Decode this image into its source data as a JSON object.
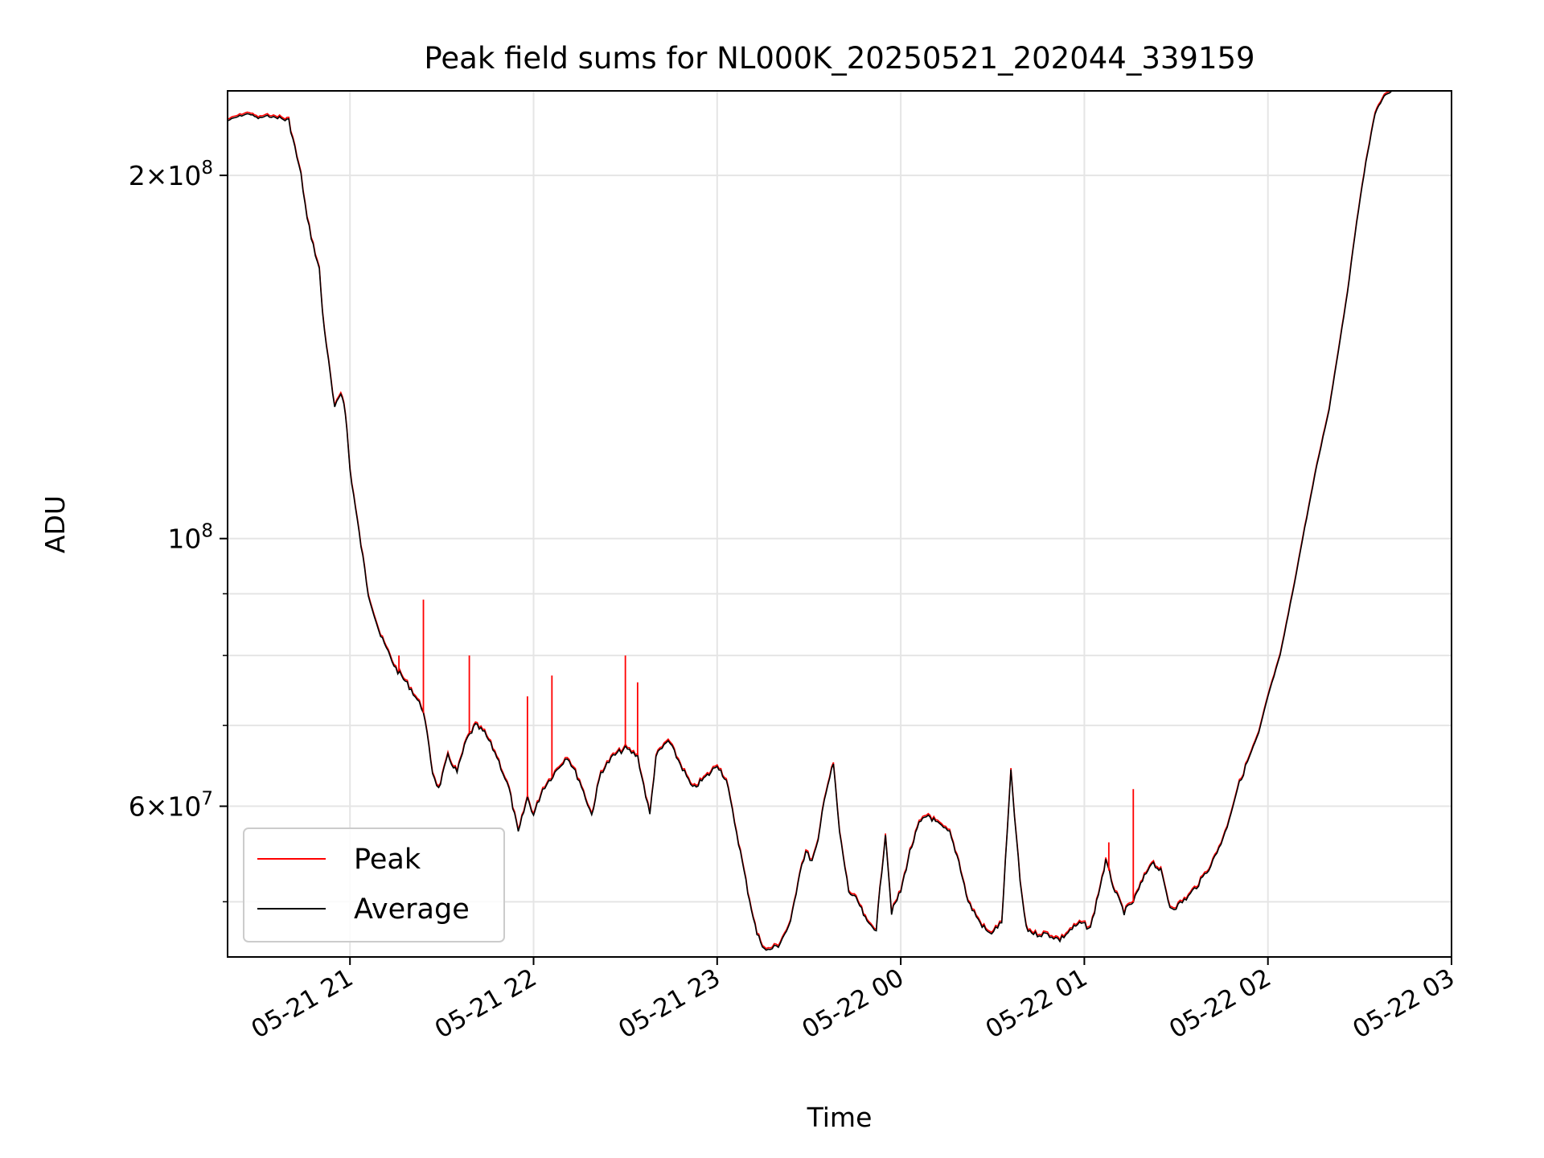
{
  "chart_data": {
    "type": "line",
    "title": "Peak field sums for NL000K_20250521_202044_339159",
    "xlabel": "Time",
    "ylabel": "ADU",
    "yscale": "log",
    "grid": true,
    "legend_position": "lower-left",
    "xlim": [
      "2025-05-21 20:20",
      "2025-05-22 03:00"
    ],
    "ylim": [
      45000000,
      235000000
    ],
    "x_ticks": [
      {
        "t": "2025-05-21 21:00",
        "label": "05-21 21"
      },
      {
        "t": "2025-05-21 22:00",
        "label": "05-21 22"
      },
      {
        "t": "2025-05-21 23:00",
        "label": "05-21 23"
      },
      {
        "t": "2025-05-22 00:00",
        "label": "05-22 00"
      },
      {
        "t": "2025-05-22 01:00",
        "label": "05-22 01"
      },
      {
        "t": "2025-05-22 02:00",
        "label": "05-22 02"
      },
      {
        "t": "2025-05-22 03:00",
        "label": "05-22 03"
      }
    ],
    "y_major_ticks": [
      {
        "v": 60000000,
        "mant": "6",
        "exp": "7"
      },
      {
        "v": 100000000,
        "mant": "",
        "exp": "8"
      },
      {
        "v": 200000000,
        "mant": "2",
        "exp": "8"
      }
    ],
    "y_minor_ticks": [
      50000000,
      70000000,
      80000000,
      90000000
    ],
    "series": [
      {
        "name": "Average",
        "color": "#000000",
        "x": [
          "2025-05-21 20:20",
          "2025-05-21 20:24",
          "2025-05-21 20:27",
          "2025-05-21 20:30",
          "2025-05-21 20:33",
          "2025-05-21 20:37",
          "2025-05-21 20:40",
          "2025-05-21 20:44",
          "2025-05-21 20:46",
          "2025-05-21 20:48",
          "2025-05-21 20:50",
          "2025-05-21 20:51",
          "2025-05-21 20:53",
          "2025-05-21 20:55",
          "2025-05-21 20:57",
          "2025-05-21 20:58",
          "2025-05-21 20:59",
          "2025-05-21 21:00",
          "2025-05-21 21:03",
          "2025-05-21 21:06",
          "2025-05-21 21:10",
          "2025-05-21 21:15",
          "2025-05-21 21:20",
          "2025-05-21 21:24",
          "2025-05-21 21:27",
          "2025-05-21 21:29",
          "2025-05-21 21:32",
          "2025-05-21 21:35",
          "2025-05-21 21:38",
          "2025-05-21 21:41",
          "2025-05-21 21:44",
          "2025-05-21 21:48",
          "2025-05-21 21:52",
          "2025-05-21 21:55",
          "2025-05-21 21:58",
          "2025-05-21 22:00",
          "2025-05-21 22:03",
          "2025-05-21 22:07",
          "2025-05-21 22:11",
          "2025-05-21 22:15",
          "2025-05-21 22:19",
          "2025-05-21 22:22",
          "2025-05-21 22:26",
          "2025-05-21 22:30",
          "2025-05-21 22:34",
          "2025-05-21 22:38",
          "2025-05-21 22:40",
          "2025-05-21 22:44",
          "2025-05-21 22:48",
          "2025-05-21 22:52",
          "2025-05-21 22:55",
          "2025-05-21 22:58",
          "2025-05-21 23:00",
          "2025-05-21 23:03",
          "2025-05-21 23:07",
          "2025-05-21 23:10",
          "2025-05-21 23:13",
          "2025-05-21 23:16",
          "2025-05-21 23:20",
          "2025-05-21 23:24",
          "2025-05-21 23:27",
          "2025-05-21 23:29",
          "2025-05-21 23:31",
          "2025-05-21 23:33",
          "2025-05-21 23:35",
          "2025-05-21 23:38",
          "2025-05-21 23:40",
          "2025-05-21 23:43",
          "2025-05-21 23:46",
          "2025-05-21 23:49",
          "2025-05-21 23:52",
          "2025-05-21 23:55",
          "2025-05-21 23:57",
          "2025-05-22 00:00",
          "2025-05-22 00:03",
          "2025-05-22 00:06",
          "2025-05-22 00:09",
          "2025-05-22 00:12",
          "2025-05-22 00:16",
          "2025-05-22 00:19",
          "2025-05-22 00:22",
          "2025-05-22 00:26",
          "2025-05-22 00:29",
          "2025-05-22 00:33",
          "2025-05-22 00:36",
          "2025-05-22 00:39",
          "2025-05-22 00:41",
          "2025-05-22 00:44",
          "2025-05-22 00:48",
          "2025-05-22 00:52",
          "2025-05-22 00:56",
          "2025-05-22 00:59",
          "2025-05-22 01:02",
          "2025-05-22 01:04",
          "2025-05-22 01:07",
          "2025-05-22 01:10",
          "2025-05-22 01:13",
          "2025-05-22 01:16",
          "2025-05-22 01:19",
          "2025-05-22 01:22",
          "2025-05-22 01:25",
          "2025-05-22 01:28",
          "2025-05-22 01:30",
          "2025-05-22 01:34",
          "2025-05-22 01:38",
          "2025-05-22 01:42",
          "2025-05-22 01:46",
          "2025-05-22 01:50",
          "2025-05-22 01:54",
          "2025-05-22 01:57",
          "2025-05-22 02:00",
          "2025-05-22 02:04",
          "2025-05-22 02:08",
          "2025-05-22 02:12",
          "2025-05-22 02:16",
          "2025-05-22 02:20",
          "2025-05-22 02:23",
          "2025-05-22 02:26",
          "2025-05-22 02:29",
          "2025-05-22 02:32",
          "2025-05-22 02:35",
          "2025-05-22 02:38",
          "2025-05-22 02:41"
        ],
        "values": [
          222000000,
          224000000,
          225000000,
          223000000,
          224000000,
          223000000,
          222000000,
          200000000,
          184000000,
          175000000,
          167000000,
          154000000,
          140000000,
          128000000,
          132000000,
          130000000,
          123000000,
          114000000,
          101000000,
          90000000,
          83000000,
          78000000,
          75000000,
          72000000,
          64000000,
          62000000,
          66000000,
          64000000,
          68000000,
          70000000,
          69000000,
          66000000,
          62000000,
          57000000,
          61000000,
          59000000,
          62000000,
          64000000,
          66000000,
          63000000,
          59000000,
          64000000,
          66000000,
          67000000,
          66000000,
          59000000,
          66000000,
          68000000,
          65000000,
          62000000,
          63000000,
          64000000,
          65000000,
          63000000,
          56000000,
          51000000,
          47000000,
          45500000,
          46000000,
          48000000,
          53000000,
          55000000,
          54000000,
          56000000,
          61000000,
          65000000,
          57000000,
          51000000,
          50000000,
          48000000,
          47500000,
          57000000,
          49000000,
          51000000,
          55000000,
          58000000,
          59000000,
          58000000,
          57000000,
          54000000,
          50000000,
          48000000,
          47000000,
          48000000,
          64000000,
          52000000,
          47500000,
          47000000,
          47000000,
          46500000,
          47500000,
          48000000,
          47500000,
          50000000,
          54000000,
          51000000,
          49000000,
          50000000,
          52000000,
          54000000,
          53000000,
          49500000,
          49500000,
          50500000,
          52000000,
          54000000,
          57000000,
          62000000,
          66000000,
          69000000,
          74000000,
          80000000,
          90000000,
          102000000,
          115000000,
          128000000,
          143000000,
          160000000,
          183000000,
          205000000,
          225000000,
          233000000,
          235000000
        ]
      },
      {
        "name": "Peak",
        "color": "#ff0000",
        "spikes": [
          {
            "t": "2025-05-21 21:16",
            "v": 80000000
          },
          {
            "t": "2025-05-21 21:24",
            "v": 89000000
          },
          {
            "t": "2025-05-21 21:39",
            "v": 80000000
          },
          {
            "t": "2025-05-21 21:58",
            "v": 74000000
          },
          {
            "t": "2025-05-21 22:06",
            "v": 77000000
          },
          {
            "t": "2025-05-21 22:30",
            "v": 80000000
          },
          {
            "t": "2025-05-21 22:34",
            "v": 76000000
          },
          {
            "t": "2025-05-22 01:08",
            "v": 56000000
          },
          {
            "t": "2025-05-22 01:16",
            "v": 62000000
          }
        ]
      }
    ]
  }
}
